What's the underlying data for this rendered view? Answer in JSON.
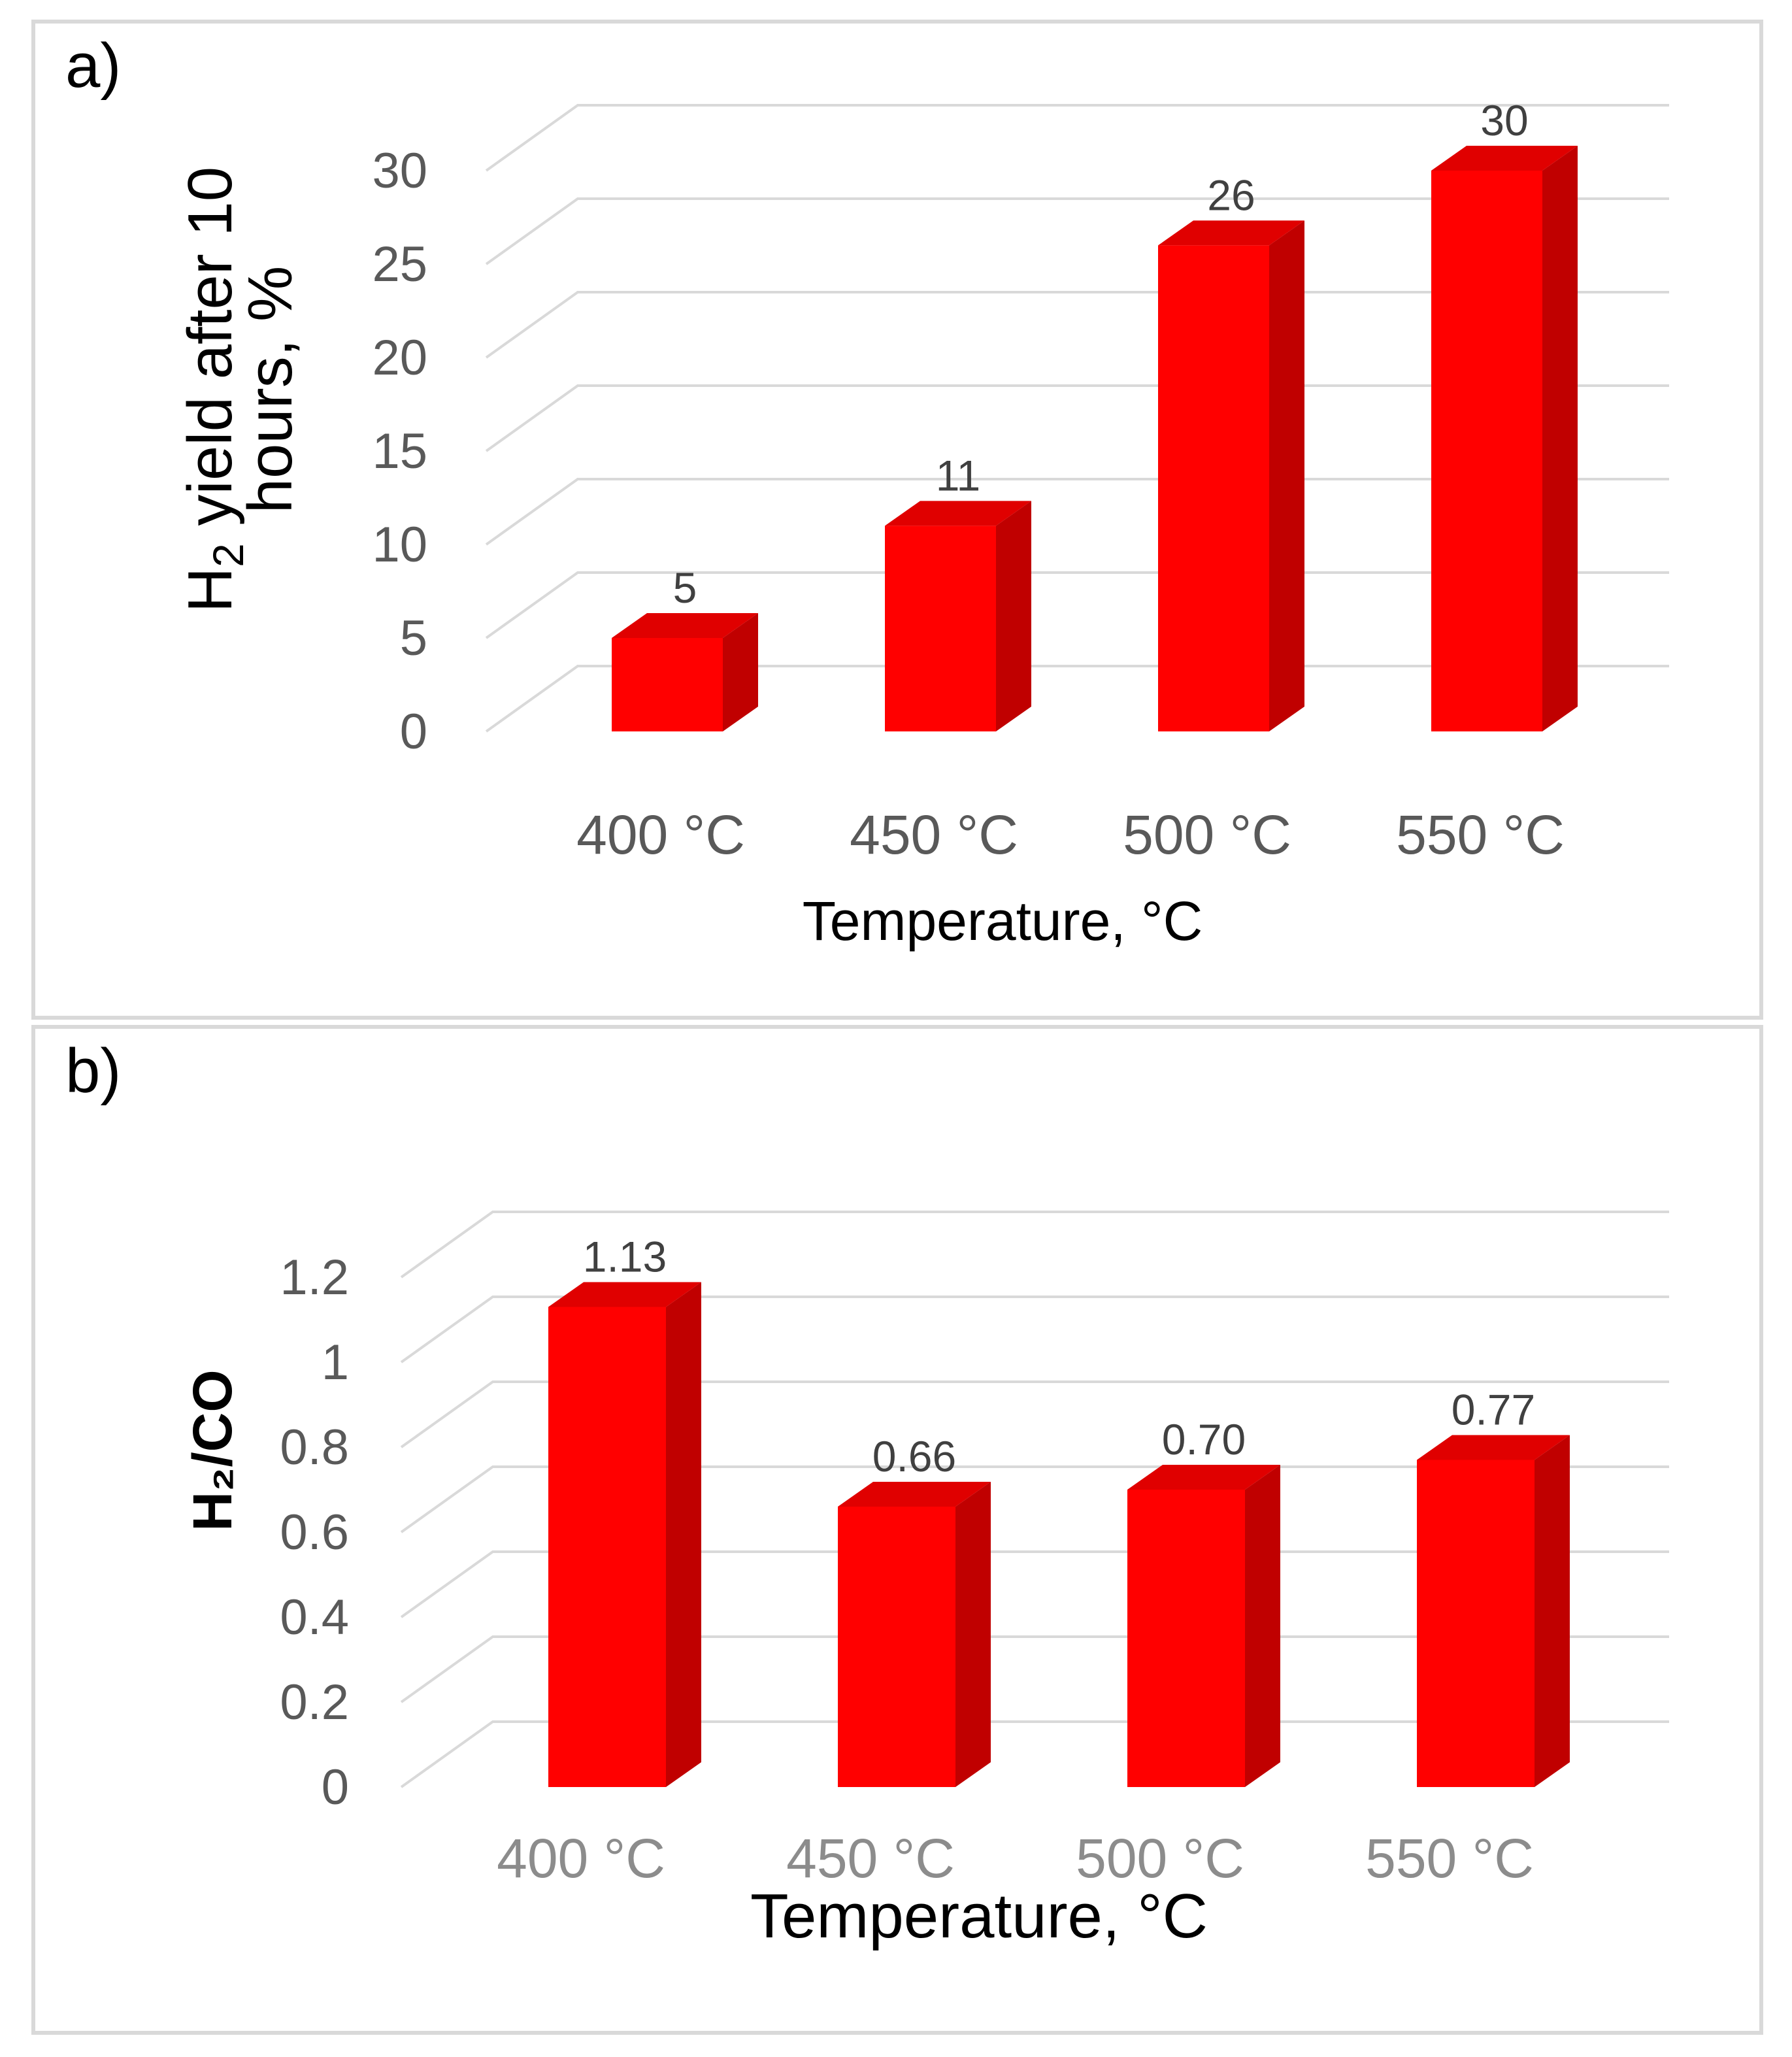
{
  "chart_data": [
    {
      "panel": "a)",
      "type": "bar",
      "categories": [
        "400 °C",
        "450 °C",
        "500 °C",
        "550 °C"
      ],
      "values": [
        5,
        11,
        26,
        30
      ],
      "data_labels": [
        "5",
        "11",
        "26",
        "30"
      ],
      "ylabel_main": "H",
      "ylabel_sub": "2",
      "ylabel_rest_line1": " yield after 10",
      "ylabel_line2": "hours, %",
      "xlabel": "Temperature,  °C",
      "ylim": [
        0,
        30
      ],
      "yticks": [
        "0",
        "5",
        "10",
        "15",
        "20",
        "25",
        "30"
      ],
      "ytick_values": [
        0,
        5,
        10,
        15,
        20,
        25,
        30
      ],
      "bar_color": "#ff0000",
      "bar_side_color": "#c00000",
      "bar_top_color": "#e00000",
      "grid": true,
      "style": "3d"
    },
    {
      "panel": "b)",
      "type": "bar",
      "categories": [
        "400 °C",
        "450 °C",
        "500 °C",
        "550 °C"
      ],
      "values": [
        1.13,
        0.66,
        0.7,
        0.77
      ],
      "data_labels": [
        "1.13",
        "0.66",
        "0.70",
        "0.77"
      ],
      "ylabel": "H₂/CO",
      "xlabel": "Temperature, °C",
      "ylim": [
        0,
        1.2
      ],
      "yticks": [
        "0",
        "0.2",
        "0.4",
        "0.6",
        "0.8",
        "1",
        "1.2"
      ],
      "ytick_values": [
        0,
        0.2,
        0.4,
        0.6,
        0.8,
        1.0,
        1.2
      ],
      "bar_color": "#ff0000",
      "bar_side_color": "#c00000",
      "bar_top_color": "#e00000",
      "grid": true,
      "style": "3d"
    }
  ]
}
